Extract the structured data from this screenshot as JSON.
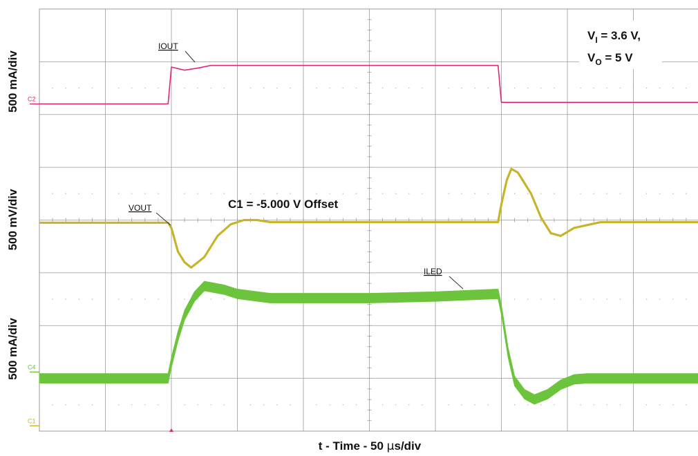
{
  "colors": {
    "iout": "#e0267c",
    "vout": "#c8b42a",
    "iled": "#6cc43c",
    "grid": "#9a9a9a",
    "dots": "#b0b0b0"
  },
  "conditions": {
    "vi_main": "V",
    "vi_sub": "I",
    "vi_rest": " = 3.6 V,",
    "vo_main": "V",
    "vo_sub": "O",
    "vo_rest": " = 5 V"
  },
  "offset_note": "C1 =  -5.000 V Offset",
  "chart_data": {
    "type": "line",
    "xlabel_parts": [
      "t - Time - 50 ",
      "μ",
      "s/div"
    ],
    "x_unit": "div",
    "xlim": [
      0,
      10
    ],
    "ylim_div": [
      0,
      8
    ],
    "grid": true,
    "y_axis_labels": [
      "500 mA/div",
      "500 mV/div",
      "500 mA/div"
    ],
    "series": [
      {
        "name": "IOUT",
        "channel": "C2",
        "scale": "500 mA/div",
        "marker_div": 6.2,
        "x": [
          0,
          1.95,
          2.0,
          2.1,
          2.2,
          2.4,
          2.6,
          3.0,
          4.0,
          5.0,
          6.0,
          6.95,
          7.0,
          8.0,
          10.0
        ],
        "y_div": [
          6.2,
          6.2,
          6.9,
          6.87,
          6.84,
          6.88,
          6.93,
          6.93,
          6.93,
          6.93,
          6.93,
          6.93,
          6.23,
          6.23,
          6.23
        ]
      },
      {
        "name": "VOUT",
        "channel": "C1",
        "scale": "500 mV/div",
        "offset": "-5.000 V",
        "marker_div": 0.1,
        "x": [
          0,
          1.95,
          2.0,
          2.1,
          2.2,
          2.3,
          2.5,
          2.7,
          2.9,
          3.1,
          3.3,
          3.5,
          4.0,
          5.0,
          6.0,
          6.95,
          7.0,
          7.08,
          7.15,
          7.25,
          7.45,
          7.6,
          7.75,
          7.9,
          8.1,
          8.5,
          10.0
        ],
        "y_div": [
          3.95,
          3.95,
          3.85,
          3.4,
          3.2,
          3.1,
          3.3,
          3.7,
          3.92,
          4.0,
          4.0,
          3.96,
          3.96,
          3.96,
          3.96,
          3.96,
          4.3,
          4.75,
          4.97,
          4.9,
          4.5,
          4.05,
          3.75,
          3.7,
          3.85,
          3.96,
          3.96
        ]
      },
      {
        "name": "ILED",
        "channel": "C4",
        "scale": "500 mA/div",
        "marker_div": 1.12,
        "x": [
          0,
          1.95,
          2.0,
          2.1,
          2.2,
          2.35,
          2.5,
          2.8,
          3.0,
          3.5,
          4.0,
          5.0,
          6.0,
          6.95,
          7.0,
          7.1,
          7.2,
          7.35,
          7.5,
          7.7,
          7.9,
          8.1,
          8.3,
          8.6,
          9.0,
          10.0
        ],
        "y_div": [
          1.0,
          1.0,
          1.3,
          1.8,
          2.2,
          2.55,
          2.75,
          2.68,
          2.6,
          2.52,
          2.52,
          2.52,
          2.55,
          2.6,
          2.3,
          1.5,
          0.95,
          0.7,
          0.6,
          0.7,
          0.88,
          0.98,
          1.0,
          1.0,
          1.0,
          1.0
        ],
        "band_div": 0.18
      }
    ],
    "trigger_x": 2.0
  }
}
